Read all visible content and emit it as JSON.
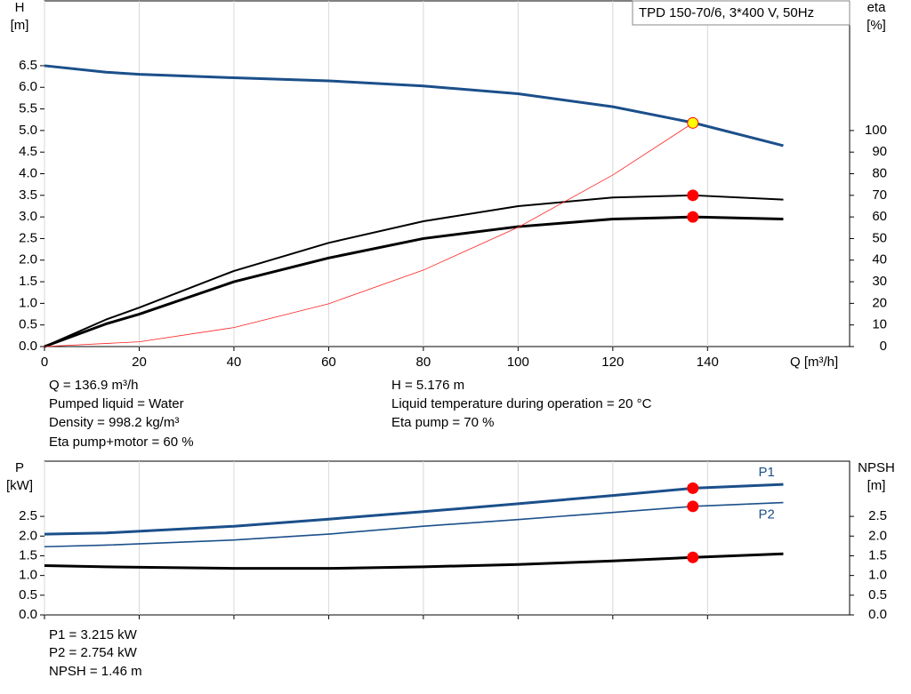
{
  "chart_data": [
    {
      "type": "line",
      "title": "TPD 150-70/6, 3*400 V, 50Hz",
      "y_label": [
        "H",
        "[m]"
      ],
      "y2_label": [
        "eta",
        "[%]"
      ],
      "x_label": "Q [m³/h]",
      "xlim": [
        0,
        170
      ],
      "xticks": [
        0,
        20,
        40,
        60,
        80,
        100,
        120,
        140
      ],
      "xtick_labels": true,
      "ylim": [
        0,
        8
      ],
      "yticks": [
        {
          "value": 0,
          "label": "0.0"
        },
        0.5,
        {
          "value": 1,
          "label": "1.0"
        },
        1.5,
        {
          "value": 2,
          "label": "2.0"
        },
        2.5,
        {
          "value": 3,
          "label": "3.0"
        },
        3.5,
        {
          "value": 4,
          "label": "4.0"
        },
        4.5,
        {
          "value": 5,
          "label": "5.0"
        },
        5.5,
        {
          "value": 6,
          "label": "6.0"
        },
        6.5
      ],
      "y2lim": [
        0,
        160
      ],
      "y2ticks": [
        0,
        10,
        20,
        30,
        40,
        50,
        60,
        70,
        80,
        90,
        100
      ],
      "grid": true,
      "series": [
        {
          "color": "#1b4f8a",
          "width": 3,
          "x": [
            0,
            13,
            20,
            40,
            60,
            80,
            100,
            120,
            137,
            156
          ],
          "values": [
            6.5,
            6.35,
            6.3,
            6.22,
            6.15,
            6.03,
            5.85,
            5.55,
            5.18,
            4.65
          ]
        },
        {
          "color": "#000000",
          "width": 2,
          "axis": "y2",
          "x": [
            0,
            13,
            20,
            40,
            60,
            80,
            100,
            120,
            137,
            156
          ],
          "values": [
            0,
            12.5,
            18,
            35,
            48,
            58,
            65,
            69,
            70,
            68
          ]
        },
        {
          "color": "#000000",
          "width": 3,
          "axis": "y2",
          "x": [
            0,
            13,
            20,
            40,
            60,
            80,
            100,
            120,
            137,
            156
          ],
          "values": [
            0,
            10.5,
            15,
            30,
            41,
            50,
            55.5,
            59,
            60,
            59
          ]
        },
        {
          "color": "#ff2020",
          "width": 0.8,
          "x": [
            0,
            20,
            40,
            60,
            80,
            100,
            120,
            137
          ],
          "values": [
            0,
            0.11,
            0.44,
            0.99,
            1.77,
            2.76,
            3.97,
            5.18
          ]
        },
        {
          "color": "#ff0000",
          "marker_fill": "#ffff00",
          "x": [
            136.9
          ],
          "values": [
            5.176
          ]
        },
        {
          "color": "#ff0000",
          "marker_fill": "#ff0000",
          "axis": "y2",
          "x": [
            136.9
          ],
          "values": [
            70
          ]
        },
        {
          "color": "#ff0000",
          "marker_fill": "#ff0000",
          "axis": "y2",
          "x": [
            136.9
          ],
          "values": [
            60
          ]
        }
      ],
      "annotations": [
        "Q = 136.9 m³/h",
        "Pumped liquid = Water",
        "Density = 998.2 kg/m³",
        "Eta pump+motor = 60 %",
        "H = 5.176 m",
        "Liquid temperature during operation = 20 °C",
        "Eta pump = 70 %"
      ]
    },
    {
      "type": "line",
      "y_label": [
        "P",
        "[kW]"
      ],
      "y2_label": [
        "NPSH",
        "[m]"
      ],
      "xlim": [
        0,
        170
      ],
      "xticks": [
        0,
        20,
        40,
        60,
        80,
        100,
        120,
        140
      ],
      "xtick_labels": false,
      "ylim": [
        0,
        3.9
      ],
      "yticks": [
        {
          "value": 0,
          "label": "0.0"
        },
        0.5,
        {
          "value": 1,
          "label": "1.0"
        },
        1.5,
        {
          "value": 2,
          "label": "2.0"
        },
        2.5
      ],
      "y2lim": [
        0,
        3.9
      ],
      "y2ticks": [
        {
          "value": 0,
          "label": "0.0"
        },
        0.5,
        {
          "value": 1,
          "label": "1.0"
        },
        1.5,
        {
          "value": 2,
          "label": "2.0"
        },
        2.5
      ],
      "grid": true,
      "series": [
        {
          "name": "P1",
          "color": "#1b4f8a",
          "width": 3,
          "x": [
            0,
            13,
            40,
            60,
            80,
            100,
            120,
            137,
            156
          ],
          "values": [
            2.05,
            2.08,
            2.25,
            2.43,
            2.62,
            2.82,
            3.03,
            3.215,
            3.31
          ]
        },
        {
          "name": "P2",
          "color": "#1b4f8a",
          "width": 1.6,
          "x": [
            0,
            13,
            40,
            60,
            80,
            100,
            120,
            137,
            156
          ],
          "values": [
            1.73,
            1.77,
            1.9,
            2.05,
            2.25,
            2.42,
            2.6,
            2.754,
            2.85
          ]
        },
        {
          "color": "#000000",
          "width": 3,
          "axis": "y2",
          "x": [
            0,
            13,
            40,
            60,
            80,
            100,
            120,
            137,
            156
          ],
          "values": [
            1.25,
            1.22,
            1.18,
            1.18,
            1.22,
            1.28,
            1.37,
            1.46,
            1.55
          ]
        },
        {
          "color": "#ff0000",
          "marker_fill": "#ff0000",
          "x": [
            136.9
          ],
          "values": [
            3.215
          ]
        },
        {
          "color": "#ff0000",
          "marker_fill": "#ff0000",
          "x": [
            136.9
          ],
          "values": [
            2.754
          ]
        },
        {
          "color": "#ff0000",
          "marker_fill": "#ff0000",
          "axis": "y2",
          "x": [
            136.9
          ],
          "values": [
            1.46
          ]
        }
      ],
      "annotations": [
        "P1 = 3.215 kW",
        "P2 = 2.754 kW",
        "NPSH = 1.46 m"
      ]
    }
  ]
}
